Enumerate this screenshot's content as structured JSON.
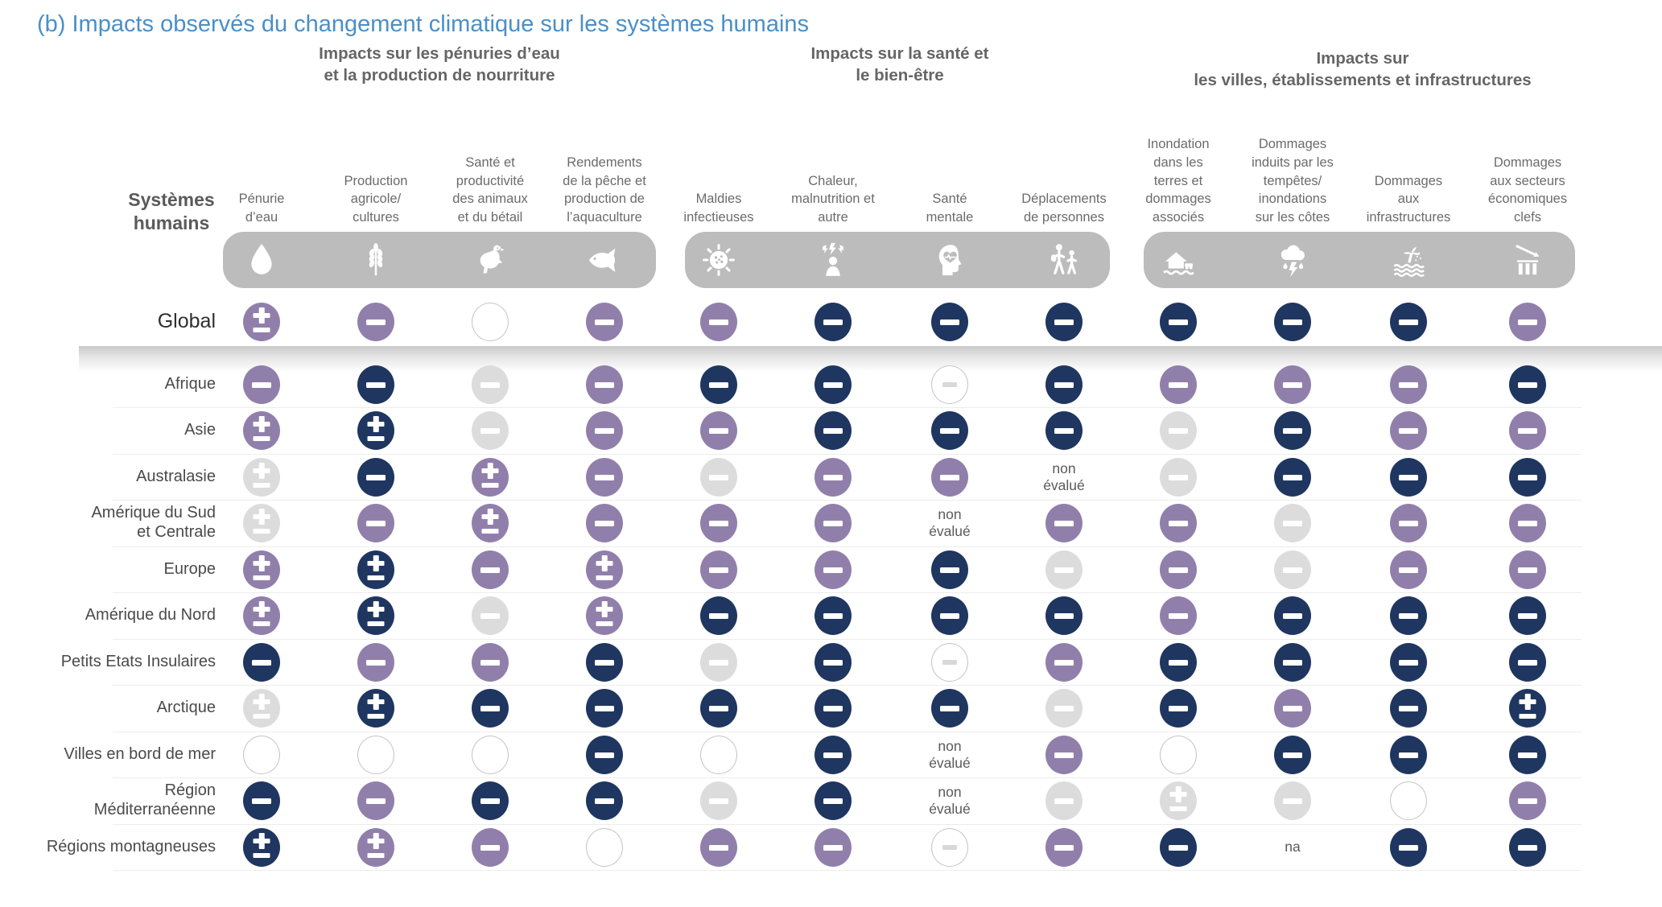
{
  "labels": {
    "not_assessed": "non\névalué",
    "na": "na"
  },
  "palette": {
    "navy": "#1f3660",
    "purple": "#917fab",
    "gray": "#dcdcdc",
    "outline_border": "#c5c5c5",
    "outline_symbol": "#d8d8d8",
    "band": "#bcbcbc",
    "title_blue": "#4a8fc8",
    "header_gray": "#666666"
  },
  "chart_data": {
    "type": "heatmap",
    "title": "(b) Impacts observés du changement climatique sur les systèmes humains",
    "corner_label": "Systèmes\nhumains",
    "cell_encoding": {
      "navy-minus": "dark navy circle with white minus symbol",
      "navy-plusminus": "dark navy circle with white plus/minus symbol",
      "purple-minus": "purple circle with white minus symbol",
      "purple-plusminus": "purple circle with white plus/minus symbol",
      "gray-minus": "light gray circle with white minus symbol",
      "gray-plusminus": "light gray circle with white plus/minus symbol",
      "outline-minus": "white outlined circle with pale gray minus symbol",
      "outline-empty": "white outlined empty circle",
      "not-assessed": "text: non évalué",
      "na": "text: na"
    },
    "column_groups": [
      {
        "label": "Impacts sur les pénuries d’eau\net la production de nourriture",
        "columns": [
          0,
          1,
          2,
          3
        ]
      },
      {
        "label": "Impacts sur la santé et\nle bien-être",
        "columns": [
          4,
          5,
          6,
          7
        ]
      },
      {
        "label": "Impacts sur\nles villes, établissements et infrastructures",
        "columns": [
          8,
          9,
          10,
          11
        ]
      }
    ],
    "columns": [
      {
        "label": "Pénurie\nd’eau",
        "icon": "water-drop-icon"
      },
      {
        "label": "Production\nagricole/\ncultures",
        "icon": "wheat-icon"
      },
      {
        "label": "Santé et\nproductivité\ndes animaux\net du bétail",
        "icon": "poultry-icon"
      },
      {
        "label": "Rendements\nde la pêche et\nproduction de\nl’aquaculture",
        "icon": "fish-icon"
      },
      {
        "label": "Maldies\ninfectieuses",
        "icon": "virus-icon"
      },
      {
        "label": "Chaleur,\nmalnutrition et\nautre",
        "icon": "heat-stress-icon"
      },
      {
        "label": "Santé\nmentale",
        "icon": "mental-health-icon"
      },
      {
        "label": "Déplacements\nde personnes",
        "icon": "displacement-icon"
      },
      {
        "label": "Inondation\ndans les\nterres et\ndommages\nassociés",
        "icon": "inland-flood-icon"
      },
      {
        "label": "Dommages\ninduits par les\ntempêtes/\ninondations\nsur les côtes",
        "icon": "storm-icon"
      },
      {
        "label": "Dommages\naux\ninfrastructures",
        "icon": "coastal-flood-icon"
      },
      {
        "label": "Dommages\naux secteurs\néconomiques\nclefs",
        "icon": "economic-decline-icon"
      }
    ],
    "rows": [
      {
        "label": "Global",
        "cells": [
          "purple-plusminus",
          "purple-minus",
          "outline-empty",
          "purple-minus",
          "purple-minus",
          "navy-minus",
          "navy-minus",
          "navy-minus",
          "navy-minus",
          "navy-minus",
          "navy-minus",
          "purple-minus"
        ]
      },
      {
        "label": "Afrique",
        "cells": [
          "purple-minus",
          "navy-minus",
          "gray-minus",
          "purple-minus",
          "navy-minus",
          "navy-minus",
          "outline-minus",
          "navy-minus",
          "purple-minus",
          "purple-minus",
          "purple-minus",
          "navy-minus"
        ]
      },
      {
        "label": "Asie",
        "cells": [
          "purple-plusminus",
          "navy-plusminus",
          "gray-minus",
          "purple-minus",
          "purple-minus",
          "navy-minus",
          "navy-minus",
          "navy-minus",
          "gray-minus",
          "navy-minus",
          "purple-minus",
          "purple-minus"
        ]
      },
      {
        "label": "Australasie",
        "cells": [
          "gray-plusminus",
          "navy-minus",
          "purple-plusminus",
          "purple-minus",
          "gray-minus",
          "purple-minus",
          "purple-minus",
          "not-assessed",
          "gray-minus",
          "navy-minus",
          "navy-minus",
          "navy-minus"
        ]
      },
      {
        "label": "Amérique du Sud\net Centrale",
        "cells": [
          "gray-plusminus",
          "purple-minus",
          "purple-plusminus",
          "purple-minus",
          "purple-minus",
          "purple-minus",
          "not-assessed",
          "purple-minus",
          "purple-minus",
          "gray-minus",
          "purple-minus",
          "purple-minus"
        ]
      },
      {
        "label": "Europe",
        "cells": [
          "purple-plusminus",
          "navy-plusminus",
          "purple-minus",
          "purple-plusminus",
          "purple-minus",
          "purple-minus",
          "navy-minus",
          "gray-minus",
          "purple-minus",
          "gray-minus",
          "purple-minus",
          "purple-minus"
        ]
      },
      {
        "label": "Amérique du Nord",
        "cells": [
          "purple-plusminus",
          "navy-plusminus",
          "gray-minus",
          "purple-plusminus",
          "navy-minus",
          "navy-minus",
          "navy-minus",
          "navy-minus",
          "purple-minus",
          "navy-minus",
          "navy-minus",
          "navy-minus"
        ]
      },
      {
        "label": "Petits Etats Insulaires",
        "cells": [
          "navy-minus",
          "purple-minus",
          "purple-minus",
          "navy-minus",
          "gray-minus",
          "navy-minus",
          "outline-minus",
          "purple-minus",
          "navy-minus",
          "navy-minus",
          "navy-minus",
          "navy-minus"
        ]
      },
      {
        "label": "Arctique",
        "cells": [
          "gray-plusminus",
          "navy-plusminus",
          "navy-minus",
          "navy-minus",
          "navy-minus",
          "navy-minus",
          "navy-minus",
          "gray-minus",
          "navy-minus",
          "purple-minus",
          "navy-minus",
          "navy-plusminus"
        ]
      },
      {
        "label": "Villes en bord de mer",
        "cells": [
          "outline-empty",
          "outline-empty",
          "outline-empty",
          "navy-minus",
          "outline-empty",
          "navy-minus",
          "not-assessed",
          "purple-minus",
          "outline-empty",
          "navy-minus",
          "navy-minus",
          "navy-minus"
        ]
      },
      {
        "label": "Région\nMéditerranéenne",
        "cells": [
          "navy-minus",
          "purple-minus",
          "navy-minus",
          "navy-minus",
          "gray-minus",
          "navy-minus",
          "not-assessed",
          "gray-minus",
          "gray-plusminus",
          "gray-minus",
          "outline-empty",
          "purple-minus"
        ]
      },
      {
        "label": "Régions montagneuses",
        "cells": [
          "navy-plusminus",
          "purple-plusminus",
          "purple-minus",
          "outline-empty",
          "purple-minus",
          "purple-minus",
          "outline-minus",
          "purple-minus",
          "navy-minus",
          "na",
          "navy-minus",
          "navy-minus"
        ]
      }
    ]
  }
}
